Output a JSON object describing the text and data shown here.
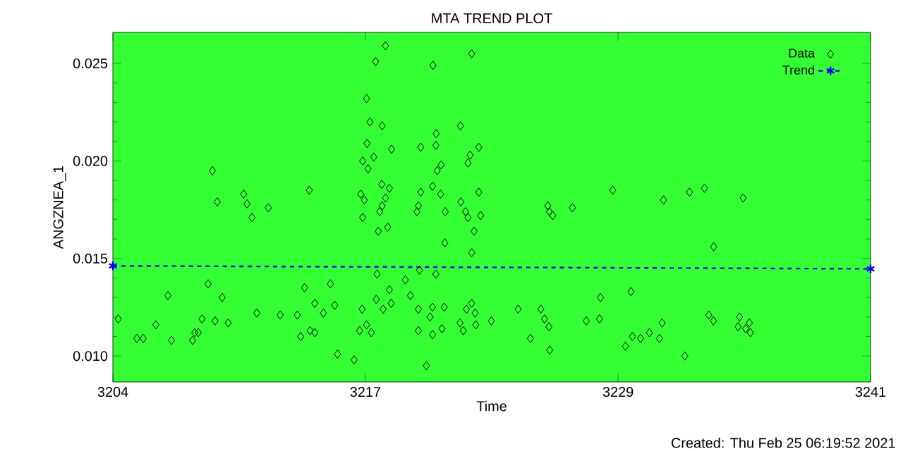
{
  "chart_data": {
    "type": "scatter",
    "title": "MTA TREND PLOT",
    "xlabel": "Time",
    "ylabel": "ANGZNEA_1",
    "annotations": [
      "Created: Thu Feb 25 06:19:52 2021"
    ],
    "xlim": [
      3204.2,
      3241.2
    ],
    "xticks": [
      {
        "value": 3204.2,
        "label": "3204"
      },
      {
        "value": 3216.53,
        "label": "3217"
      },
      {
        "value": 3228.87,
        "label": "3229"
      },
      {
        "value": 3241.2,
        "label": "3241"
      }
    ],
    "ylim": [
      0.00867,
      0.02659
    ],
    "yticks": [
      {
        "value": 0.01,
        "label": "0.010"
      },
      {
        "value": 0.015,
        "label": "0.015"
      },
      {
        "value": 0.02,
        "label": "0.020"
      },
      {
        "value": 0.025,
        "label": "0.025"
      }
    ],
    "grid": false,
    "legend": "top right",
    "series": [
      {
        "name": "Data",
        "color": "#000000",
        "marker": "diamond",
        "line_style": "none",
        "x": [
          3204.46,
          3205.37,
          3205.68,
          3206.3,
          3206.89,
          3207.06,
          3208.09,
          3208.2,
          3208.37,
          3208.55,
          3208.85,
          3209.06,
          3209.19,
          3209.3,
          3209.54,
          3209.83,
          3210.59,
          3210.75,
          3210.99,
          3211.23,
          3211.79,
          3212.37,
          3213.21,
          3213.37,
          3213.56,
          3213.79,
          3213.83,
          3217.51,
          3217.03,
          3219.83,
          3221.72,
          3216.59,
          3216.75,
          3217.35,
          3221.17,
          3219.99,
          3216.61,
          3216.94,
          3216.4,
          3216.66,
          3217.81,
          3219.23,
          3219.97,
          3220.23,
          3220.04,
          3222.07,
          3221.65,
          3221.54,
          3216.3,
          3216.48,
          3217.33,
          3217.7,
          3217.51,
          3217.35,
          3217.23,
          3219.23,
          3219.81,
          3220.2,
          3219.12,
          3219.05,
          3220.43,
          3221.19,
          3221.42,
          3221.54,
          3222.07,
          3222.16,
          3216.4,
          3217.16,
          3217.62,
          3221.84,
          3220.41,
          3221.72,
          3214.82,
          3214.06,
          3214.48,
          3215.03,
          3214.06,
          3215.17,
          3215.98,
          3217.1,
          3217.7,
          3216.37,
          3217.06,
          3217.4,
          3217.79,
          3216.59,
          3216.25,
          3216.82,
          3218.48,
          3218.73,
          3219.17,
          3219.97,
          3219.12,
          3219.81,
          3220.38,
          3219.69,
          3219.12,
          3219.81,
          3220.27,
          3219.51,
          3221.72,
          3221.47,
          3221.89,
          3221.15,
          3221.31,
          3221.92,
          3222.68,
          3223.99,
          3224.59,
          3228.61,
          3231.09,
          3232.36,
          3233.09,
          3234.98,
          3225.44,
          3225.51,
          3225.68,
          3226.64,
          3233.54,
          3225.1,
          3225.28,
          3225.49,
          3225.53,
          3227.32,
          3227.96,
          3228.01,
          3229.5,
          3229.23,
          3229.57,
          3229.97,
          3230.4,
          3230.89,
          3231.02,
          3232.13,
          3233.3,
          3233.53,
          3234.8,
          3234.73,
          3235.1,
          3235.28,
          3235.33
        ],
        "values": [
          0.0119,
          0.0109,
          0.0109,
          0.0116,
          0.0131,
          0.0108,
          0.0108,
          0.0112,
          0.0112,
          0.0119,
          0.0137,
          0.0195,
          0.0118,
          0.0179,
          0.013,
          0.0117,
          0.0183,
          0.0178,
          0.0171,
          0.0122,
          0.0176,
          0.0121,
          0.0121,
          0.011,
          0.0135,
          0.0185,
          0.0113,
          0.0259,
          0.0251,
          0.0249,
          0.0255,
          0.0232,
          0.022,
          0.0218,
          0.0218,
          0.0214,
          0.0209,
          0.0202,
          0.02,
          0.0196,
          0.0206,
          0.0207,
          0.0208,
          0.0198,
          0.0195,
          0.0207,
          0.0203,
          0.0199,
          0.0183,
          0.018,
          0.0188,
          0.0186,
          0.0181,
          0.0177,
          0.0174,
          0.0184,
          0.0187,
          0.0183,
          0.0177,
          0.0174,
          0.0174,
          0.0179,
          0.0174,
          0.0171,
          0.0184,
          0.0172,
          0.0171,
          0.0164,
          0.0166,
          0.0164,
          0.0158,
          0.0153,
          0.0137,
          0.0127,
          0.0122,
          0.0126,
          0.0112,
          0.0101,
          0.0098,
          0.0142,
          0.0134,
          0.0124,
          0.0129,
          0.0124,
          0.0127,
          0.0116,
          0.0113,
          0.0112,
          0.0139,
          0.0131,
          0.0144,
          0.0142,
          0.0124,
          0.0125,
          0.0125,
          0.012,
          0.0113,
          0.0111,
          0.0114,
          0.0095,
          0.0127,
          0.0124,
          0.0122,
          0.0117,
          0.0113,
          0.0116,
          0.0118,
          0.0124,
          0.0109,
          0.0185,
          0.018,
          0.0184,
          0.0186,
          0.0181,
          0.0177,
          0.0174,
          0.0172,
          0.0176,
          0.0156,
          0.0124,
          0.0119,
          0.0115,
          0.0103,
          0.0118,
          0.0119,
          0.013,
          0.0133,
          0.0105,
          0.011,
          0.0109,
          0.0112,
          0.0109,
          0.0117,
          0.01,
          0.0121,
          0.0118,
          0.012,
          0.0115,
          0.0114,
          0.0117,
          0.0112
        ]
      },
      {
        "name": "Trend",
        "type": "line",
        "color": "#0000ff",
        "marker": "cross",
        "line_style": "dashed",
        "x": [
          3204.2,
          3241.2
        ],
        "values": [
          0.01462,
          0.01447
        ]
      }
    ]
  }
}
